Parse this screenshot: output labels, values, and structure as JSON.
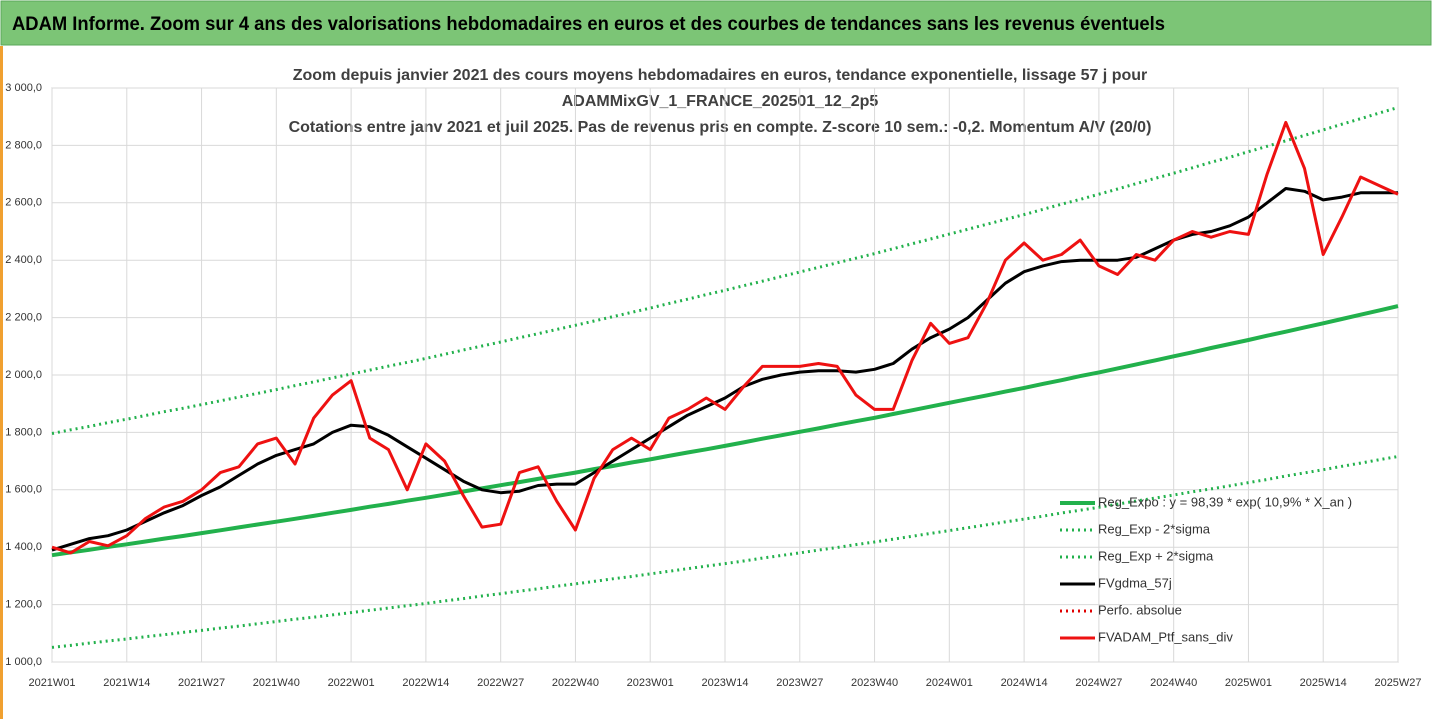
{
  "header": {
    "title": "ADAM Informe. Zoom sur 4 ans des valorisations hebdomadaires en euros et des courbes de tendances sans les revenus éventuels"
  },
  "chart_data": {
    "type": "line",
    "title": [
      "Zoom depuis janvier 2021 des cours moyens hebdomadaires  en euros, tendance exponentielle, lissage 57 j pour",
      "ADAMMixGV_1_FRANCE_202501_12_2p5",
      "Cotations entre janv 2021 et juil 2025. Pas de revenus pris en compte. Z-score 10 sem.: -0,2. Momentum A/V (20/0)"
    ],
    "categories": [
      "2021W01",
      null,
      null,
      null,
      "2021W14",
      null,
      null,
      null,
      "2021W27",
      null,
      null,
      null,
      "2021W40",
      null,
      null,
      null,
      "2022W01",
      null,
      null,
      null,
      "2022W14",
      null,
      null,
      null,
      "2022W27",
      null,
      null,
      null,
      "2022W40",
      null,
      null,
      null,
      "2023W01",
      null,
      null,
      null,
      "2023W14",
      null,
      null,
      null,
      "2023W27",
      null,
      null,
      null,
      "2023W40",
      null,
      null,
      null,
      "2024W01",
      null,
      null,
      null,
      "2024W14",
      null,
      null,
      null,
      "2024W27",
      null,
      null,
      null,
      "2024W40",
      null,
      null,
      null,
      "2025W01",
      null,
      null,
      null,
      "2025W14",
      null,
      null,
      null,
      "2025W27"
    ],
    "ylim": [
      1000,
      3000
    ],
    "yticks": [
      {
        "value": 1000,
        "label": "1 000,0"
      },
      {
        "value": 1200,
        "label": "1 200,0"
      },
      {
        "value": 1400,
        "label": "1 400,0"
      },
      {
        "value": 1600,
        "label": "1 600,0"
      },
      {
        "value": 1800,
        "label": "1 800,0"
      },
      {
        "value": 2000,
        "label": "2 000,0"
      },
      {
        "value": 2200,
        "label": "2 200,0"
      },
      {
        "value": 2400,
        "label": "2 400,0"
      },
      {
        "value": 2600,
        "label": "2 600,0"
      },
      {
        "value": 2800,
        "label": "2 800,0"
      },
      {
        "value": 3000,
        "label": "3 000,0"
      }
    ],
    "grid": true,
    "series": [
      {
        "name": "Reg_Expo : y = 98,39 * exp( 10,9% *  X_an )",
        "color": "#22b14c",
        "dash": "solid",
        "width": 4,
        "values": [
          1372,
          1382,
          1391,
          1401,
          1410,
          1420,
          1430,
          1439,
          1449,
          1459,
          1469,
          1479,
          1489,
          1499,
          1509,
          1520,
          1530,
          1541,
          1551,
          1562,
          1572,
          1583,
          1594,
          1605,
          1616,
          1627,
          1638,
          1649,
          1660,
          1672,
          1683,
          1695,
          1706,
          1718,
          1730,
          1741,
          1753,
          1765,
          1778,
          1790,
          1802,
          1814,
          1827,
          1839,
          1851,
          1864,
          1877,
          1890,
          1903,
          1916,
          1929,
          1942,
          1955,
          1969,
          1982,
          1996,
          2009,
          2023,
          2037,
          2051,
          2065,
          2079,
          2094,
          2108,
          2122,
          2137,
          2151,
          2166,
          2180,
          2195,
          2210,
          2225,
          2240
        ]
      },
      {
        "name": "Reg_Exp - 2*sigma",
        "color": "#22b14c",
        "dash": "dotted",
        "width": 3,
        "values": [
          1051,
          1058,
          1066,
          1073,
          1080,
          1088,
          1095,
          1103,
          1110,
          1118,
          1125,
          1133,
          1141,
          1149,
          1156,
          1164,
          1172,
          1180,
          1188,
          1196,
          1204,
          1213,
          1221,
          1230,
          1238,
          1247,
          1255,
          1264,
          1272,
          1281,
          1290,
          1298,
          1307,
          1316,
          1325,
          1334,
          1343,
          1352,
          1362,
          1371,
          1380,
          1390,
          1399,
          1409,
          1418,
          1428,
          1438,
          1448,
          1458,
          1468,
          1478,
          1488,
          1498,
          1508,
          1519,
          1529,
          1539,
          1550,
          1561,
          1571,
          1582,
          1593,
          1603,
          1614,
          1625,
          1636,
          1648,
          1659,
          1670,
          1682,
          1693,
          1705,
          1716
        ]
      },
      {
        "name": "Reg_Exp + 2*sigma",
        "color": "#22b14c",
        "dash": "dotted",
        "width": 3,
        "values": [
          1796,
          1809,
          1821,
          1834,
          1846,
          1859,
          1872,
          1884,
          1897,
          1910,
          1923,
          1936,
          1949,
          1963,
          1976,
          1990,
          2003,
          2017,
          2031,
          2044,
          2058,
          2072,
          2087,
          2101,
          2115,
          2130,
          2144,
          2159,
          2173,
          2188,
          2203,
          2218,
          2233,
          2249,
          2264,
          2280,
          2295,
          2311,
          2327,
          2343,
          2359,
          2375,
          2391,
          2407,
          2423,
          2440,
          2457,
          2474,
          2491,
          2508,
          2525,
          2542,
          2559,
          2577,
          2595,
          2612,
          2630,
          2648,
          2667,
          2685,
          2703,
          2722,
          2741,
          2759,
          2778,
          2797,
          2816,
          2835,
          2854,
          2874,
          2893,
          2913,
          2932
        ]
      },
      {
        "name": "FVgdma_57j",
        "color": "#000000",
        "dash": "solid",
        "width": 3,
        "values": [
          1390,
          1410,
          1430,
          1440,
          1460,
          1490,
          1520,
          1545,
          1580,
          1610,
          1650,
          1690,
          1720,
          1740,
          1760,
          1800,
          1825,
          1820,
          1790,
          1750,
          1710,
          1670,
          1630,
          1600,
          1590,
          1595,
          1615,
          1620,
          1620,
          1660,
          1700,
          1740,
          1780,
          1820,
          1860,
          1890,
          1920,
          1960,
          1985,
          2000,
          2010,
          2015,
          2015,
          2010,
          2020,
          2040,
          2090,
          2130,
          2160,
          2200,
          2260,
          2320,
          2360,
          2380,
          2395,
          2400,
          2400,
          2400,
          2410,
          2440,
          2470,
          2490,
          2500,
          2520,
          2550,
          2600,
          2650,
          2640,
          2610,
          2620,
          2635,
          2635,
          2635
        ]
      },
      {
        "name": "Perfo. absolue",
        "color": "#e00000",
        "dash": "dotted",
        "width": 3,
        "values": [
          null,
          null,
          null,
          null,
          null,
          null,
          null,
          null,
          null,
          null,
          null,
          null,
          null,
          null,
          null,
          null,
          null,
          null,
          null,
          null,
          null,
          null,
          null,
          null,
          null,
          null,
          null,
          null,
          null,
          null,
          null,
          null,
          null,
          null,
          null,
          null,
          null,
          null,
          null,
          null,
          null,
          null,
          null,
          null,
          null,
          null,
          null,
          null,
          null,
          null,
          null,
          null,
          null,
          null,
          null,
          null,
          null,
          null,
          null,
          null,
          null,
          null,
          null,
          null,
          null,
          null,
          null,
          null,
          null,
          null,
          null,
          null,
          null
        ]
      },
      {
        "name": "FVADAM_Ptf_sans_div",
        "color": "#ee1111",
        "dash": "solid",
        "width": 3,
        "values": [
          1400,
          1380,
          1420,
          1405,
          1440,
          1500,
          1540,
          1560,
          1600,
          1660,
          1680,
          1760,
          1780,
          1690,
          1850,
          1930,
          1980,
          1780,
          1740,
          1600,
          1760,
          1700,
          1580,
          1470,
          1480,
          1660,
          1680,
          1560,
          1460,
          1640,
          1740,
          1780,
          1740,
          1850,
          1880,
          1920,
          1880,
          1960,
          2030,
          2030,
          2030,
          2040,
          2030,
          1930,
          1880,
          1880,
          2050,
          2180,
          2110,
          2130,
          2250,
          2400,
          2460,
          2400,
          2420,
          2470,
          2380,
          2350,
          2420,
          2400,
          2470,
          2500,
          2480,
          2500,
          2490,
          2700,
          2880,
          2720,
          2420,
          2550,
          2690,
          2660,
          2630
        ]
      }
    ]
  }
}
